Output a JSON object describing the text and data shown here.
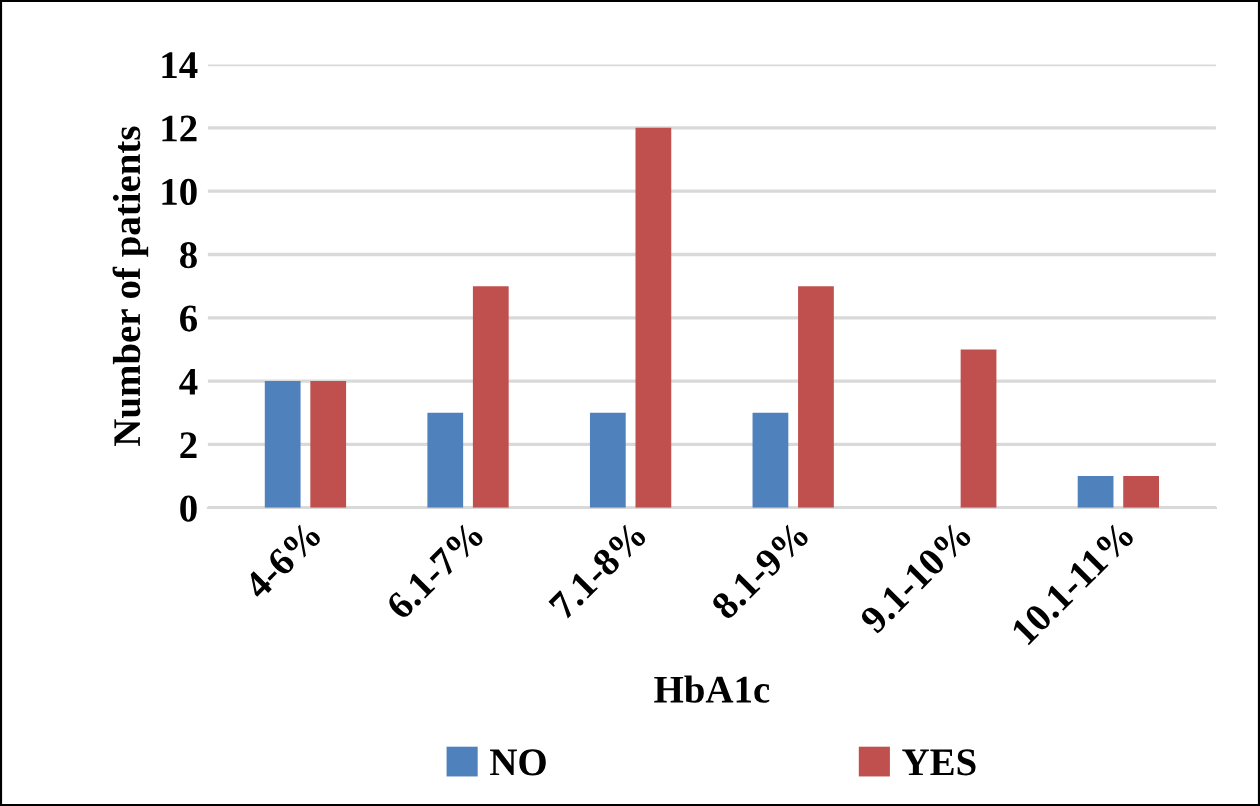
{
  "chart_data": {
    "type": "bar",
    "xlabel": "HbA1c",
    "ylabel": "Number of patients",
    "categories": [
      "4-6%",
      "6.1-7%",
      "7.1-8%",
      "8.1-9%",
      "9.1-10%",
      "10.1-11%"
    ],
    "series": [
      {
        "name": "NO",
        "color": "#4f81bd",
        "values": [
          4,
          3,
          3,
          3,
          0,
          1
        ]
      },
      {
        "name": "YES",
        "color": "#c0504d",
        "values": [
          4,
          7,
          12,
          7,
          5,
          1
        ]
      }
    ],
    "ylim": [
      0,
      14
    ],
    "yticks": [
      0,
      2,
      4,
      6,
      8,
      10,
      12,
      14
    ],
    "grid": "y",
    "legend": "bottom"
  }
}
